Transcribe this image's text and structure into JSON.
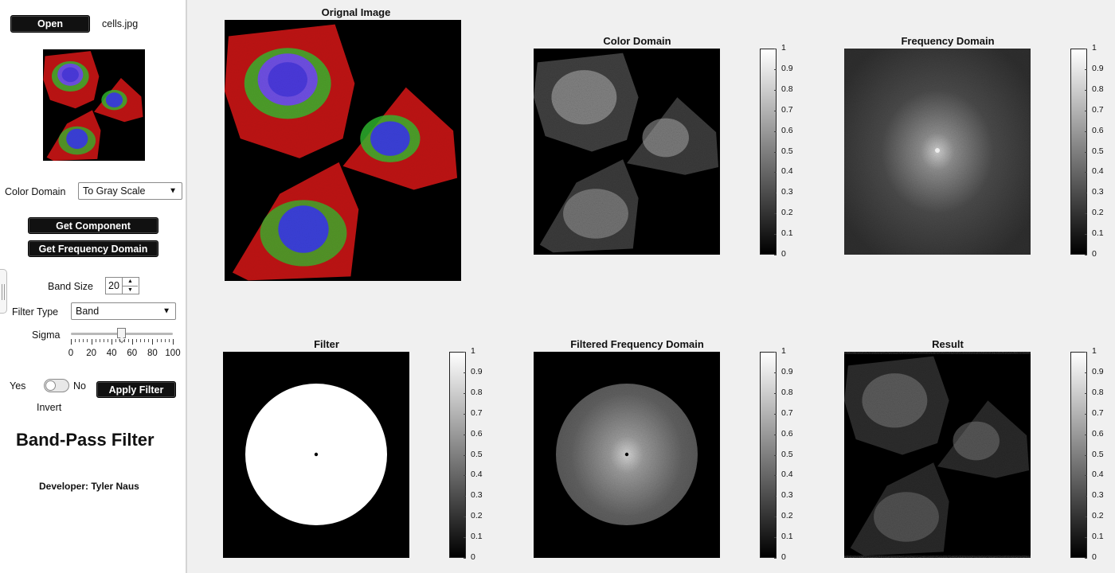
{
  "sidebar": {
    "open_button": "Open",
    "file_name": "cells.jpg",
    "color_domain_label": "Color Domain",
    "color_domain_value": "To Gray Scale",
    "get_component_button": "Get Component",
    "get_frequency_button": "Get Frequency Domain",
    "band_size_label": "Band Size",
    "band_size_value": "20",
    "filter_type_label": "Filter Type",
    "filter_type_value": "Band",
    "sigma_label": "Sigma",
    "sigma_value": 50,
    "sigma_ticks": [
      "0",
      "20",
      "40",
      "60",
      "80",
      "100"
    ],
    "toggle_yes": "Yes",
    "toggle_no": "No",
    "invert_label": "Invert",
    "apply_button": "Apply Filter",
    "app_title": "Band-Pass Filter",
    "developer": "Developer: Tyler Naus"
  },
  "panels": {
    "original": {
      "title": "Orignal Image"
    },
    "color_domain": {
      "title": "Color Domain"
    },
    "frequency_domain": {
      "title": "Frequency Domain"
    },
    "filter": {
      "title": "Filter"
    },
    "filtered_frequency": {
      "title": "Filtered Frequency Domain"
    },
    "result": {
      "title": "Result"
    }
  },
  "colorbar_ticks": [
    "1",
    "0.9",
    "0.8",
    "0.7",
    "0.6",
    "0.5",
    "0.4",
    "0.3",
    "0.2",
    "0.1",
    "0"
  ],
  "colors": {
    "cell_red": "#e01818",
    "cell_green": "#2ecc2e",
    "cell_blue": "#2f3fd6",
    "cell_purple": "#7a4fd8"
  }
}
